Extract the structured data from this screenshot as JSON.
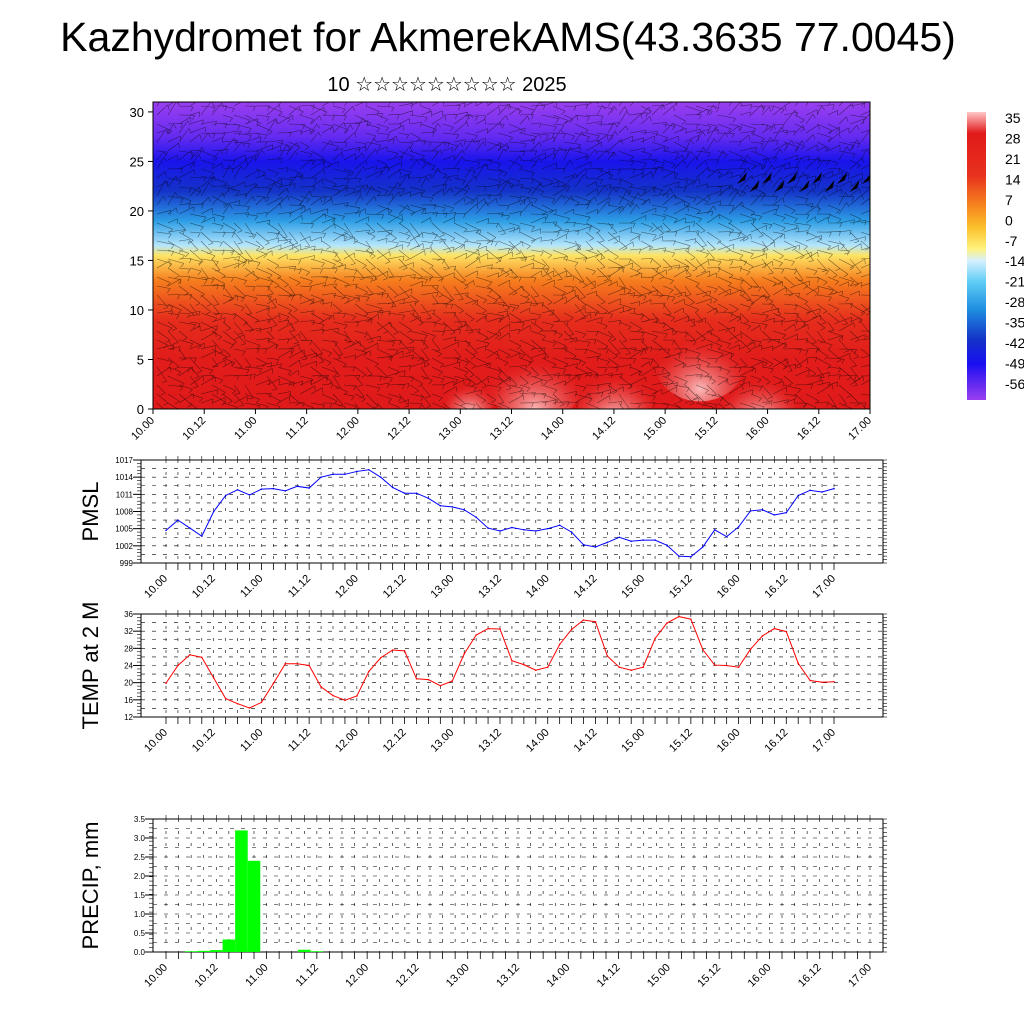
{
  "header": {
    "title": "Kazhydromet for AkmerekAMS(43.3635 77.0045)",
    "subtitle": "10 ☆☆☆☆☆☆☆☆☆ 2025"
  },
  "time_labels": [
    "10.00",
    "10.12",
    "11.00",
    "11.12",
    "12.00",
    "12.12",
    "13.00",
    "13.12",
    "14.00",
    "14.12",
    "15.00",
    "15.12",
    "16.00",
    "16.12",
    "17.00"
  ],
  "colorbar": {
    "labels": [
      "35",
      "28",
      "21",
      "14",
      "7",
      "0",
      "-7",
      "-14",
      "-21",
      "-28",
      "-35",
      "-42",
      "-49",
      "-56"
    ],
    "stops": [
      {
        "v": 35,
        "color": "#ffc6c6"
      },
      {
        "v": 28,
        "color": "#e01a1a"
      },
      {
        "v": 14,
        "color": "#e8321e"
      },
      {
        "v": 4,
        "color": "#f7861e"
      },
      {
        "v": -3,
        "color": "#fbc02c"
      },
      {
        "v": -10,
        "color": "#fff27a"
      },
      {
        "v": -14,
        "color": "#d7f0ff"
      },
      {
        "v": -21,
        "color": "#5fcdf5"
      },
      {
        "v": -30,
        "color": "#1f8fe0"
      },
      {
        "v": -40,
        "color": "#1433c8"
      },
      {
        "v": -48,
        "color": "#1a0ff0"
      },
      {
        "v": -60,
        "color": "#9a3ff0"
      }
    ]
  },
  "chart_data": [
    {
      "type": "heatmap",
      "description_label": "",
      "y_ticks": [
        0,
        5,
        10,
        15,
        20,
        25,
        30
      ],
      "ylim": [
        0,
        31
      ],
      "x_labels_ref": "time_labels",
      "vertical_profile": [
        {
          "level": 0,
          "value": 28
        },
        {
          "level": 5,
          "value": 27
        },
        {
          "level": 9,
          "value": 17
        },
        {
          "level": 13,
          "value": 5
        },
        {
          "level": 15.5,
          "value": -8
        },
        {
          "level": 16.5,
          "value": -16
        },
        {
          "level": 19,
          "value": -28
        },
        {
          "level": 22,
          "value": -40
        },
        {
          "level": 25,
          "value": -47
        },
        {
          "level": 27.5,
          "value": -55
        },
        {
          "level": 31,
          "value": -60
        }
      ]
    },
    {
      "type": "line",
      "ylabel": "PMSL",
      "y_ticks": [
        "1017",
        "1014",
        "1011",
        "1008",
        "1005",
        "1002",
        "999"
      ],
      "ylim": [
        999,
        1017
      ],
      "color": "#0000ff",
      "values": [
        1004.7,
        1006.5,
        1005.1,
        1003.7,
        1008.0,
        1010.8,
        1011.8,
        1010.9,
        1011.9,
        1012.0,
        1011.6,
        1012.4,
        1012.1,
        1014.0,
        1014.5,
        1014.5,
        1015.0,
        1015.3,
        1014.0,
        1012.2,
        1011.2,
        1011.2,
        1010.3,
        1009.0,
        1008.8,
        1008.3,
        1007.0,
        1005.1,
        1004.6,
        1005.2,
        1004.8,
        1004.6,
        1005.0,
        1005.6,
        1004.4,
        1002.2,
        1001.8,
        1002.6,
        1003.5,
        1002.8,
        1003.0,
        1003.0,
        1002.1,
        1000.2,
        1000.1,
        1001.8,
        1004.8,
        1003.6,
        1005.3,
        1008.1,
        1008.3,
        1007.4,
        1007.8,
        1010.8,
        1011.7,
        1011.4,
        1012.0
      ]
    },
    {
      "type": "line",
      "ylabel": "TEMP at 2 M",
      "y_ticks": [
        "36",
        "32",
        "28",
        "24",
        "20",
        "16",
        "12"
      ],
      "ylim": [
        12,
        36
      ],
      "color": "#ff0000",
      "values": [
        19.9,
        24.0,
        26.5,
        25.9,
        21.1,
        16.3,
        15.1,
        14.1,
        15.4,
        19.8,
        24.4,
        24.4,
        24.0,
        19.0,
        17.0,
        15.9,
        16.9,
        22.6,
        25.8,
        27.6,
        27.4,
        20.9,
        20.7,
        19.3,
        20.4,
        26.7,
        31.1,
        32.6,
        32.5,
        25.1,
        24.2,
        22.9,
        23.6,
        28.9,
        32.4,
        34.6,
        34.2,
        26.2,
        23.6,
        22.9,
        23.6,
        30.3,
        33.9,
        35.4,
        34.8,
        27.7,
        24.1,
        24.0,
        23.6,
        27.8,
        30.9,
        32.6,
        31.9,
        24.5,
        20.5,
        20.1,
        20.2
      ]
    },
    {
      "type": "bar",
      "ylabel": "PRECIP, mm",
      "y_ticks": [
        "3.5",
        "3.0",
        "2.5",
        "2.0",
        "1.5",
        "1.0",
        "0.5",
        "0.0"
      ],
      "ylim": [
        0,
        3.5
      ],
      "color": "#00ff00",
      "values": [
        0,
        0,
        0.02,
        0.03,
        0.05,
        0.33,
        3.2,
        2.4,
        0,
        0,
        0,
        0.06,
        0.02,
        0,
        0,
        0,
        0,
        0,
        0,
        0,
        0,
        0,
        0,
        0,
        0,
        0,
        0,
        0,
        0,
        0,
        0,
        0,
        0,
        0,
        0,
        0,
        0,
        0,
        0,
        0,
        0,
        0,
        0,
        0,
        0,
        0,
        0,
        0,
        0,
        0,
        0,
        0,
        0,
        0,
        0,
        0,
        0
      ]
    }
  ]
}
